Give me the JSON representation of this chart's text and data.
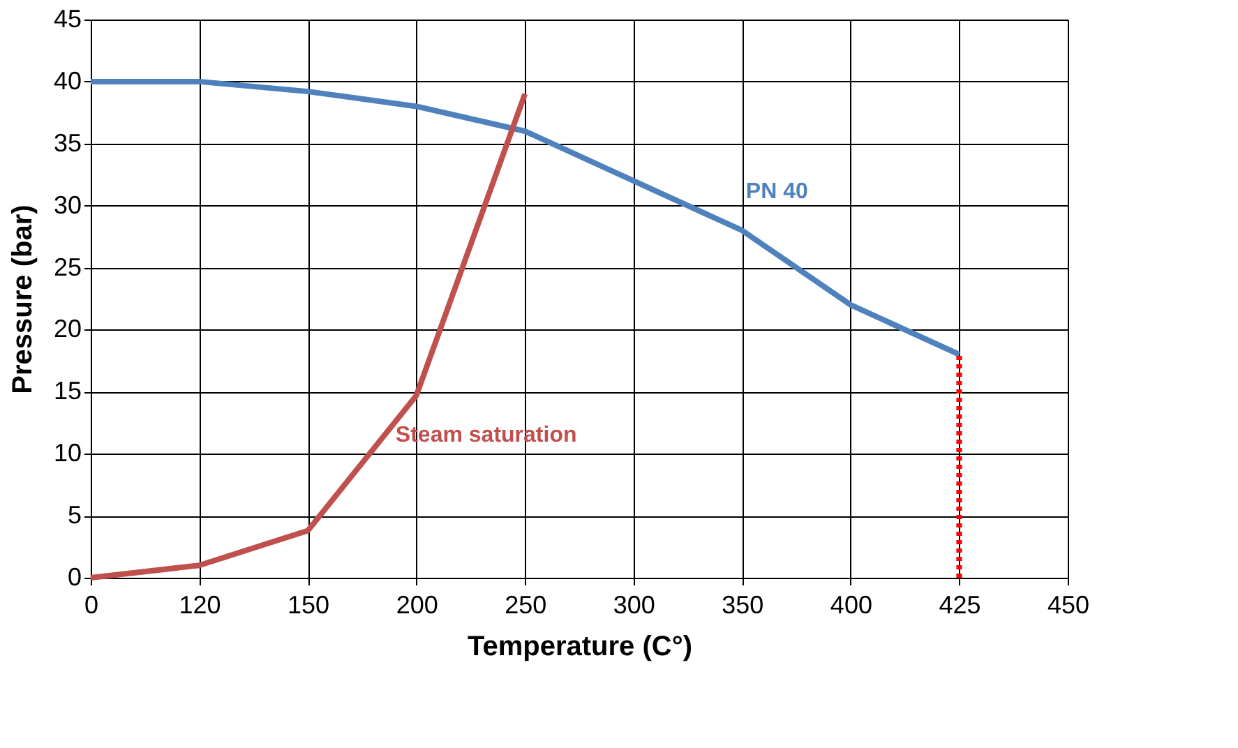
{
  "chart_data": {
    "type": "line",
    "xlabel": "Temperature (C°)",
    "ylabel": "Pressure (bar)",
    "categories": [
      "0",
      "120",
      "150",
      "200",
      "250",
      "300",
      "350",
      "400",
      "425",
      "450"
    ],
    "ylim": [
      0,
      45
    ],
    "yticks": [
      0,
      5,
      10,
      15,
      20,
      25,
      30,
      35,
      40,
      45
    ],
    "grid": true,
    "legend": false,
    "marker": "none",
    "series": [
      {
        "name": "PN 40",
        "color": "#4f81bd",
        "values": [
          40,
          40,
          39.2,
          38,
          36,
          32,
          28,
          22,
          18,
          null
        ]
      },
      {
        "name": "Steam saturation",
        "color": "#c0504d",
        "values": [
          0,
          1,
          3.8,
          14.7,
          39,
          null,
          null,
          null,
          null,
          null
        ]
      },
      {
        "color": "#ff0000",
        "line_style": "dotted",
        "x": [
          "425",
          "425"
        ],
        "values": [
          0,
          18
        ]
      }
    ]
  }
}
